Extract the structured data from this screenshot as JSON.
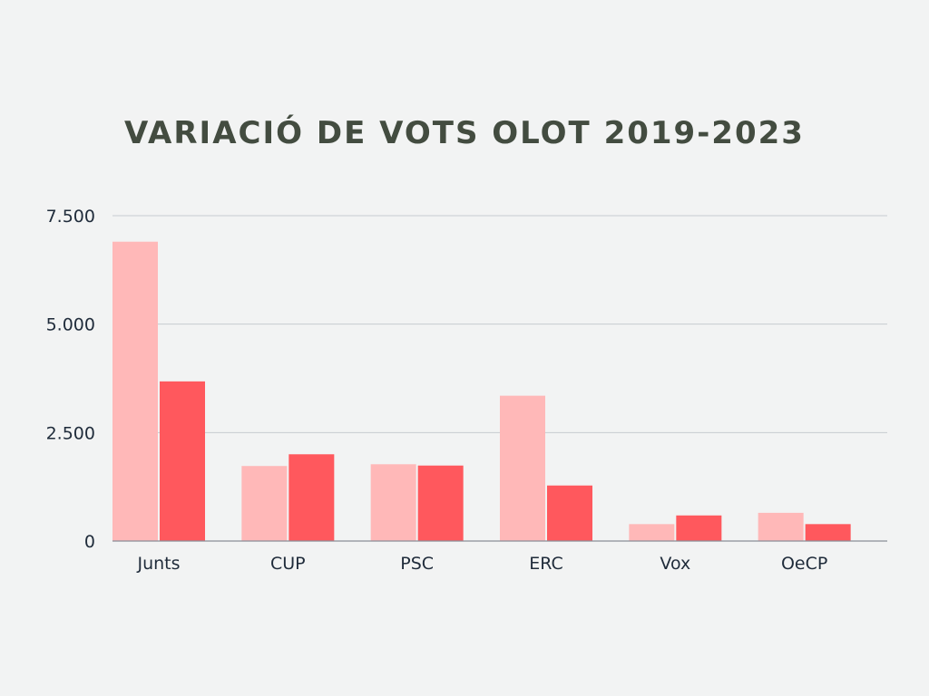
{
  "chart_data": {
    "type": "bar",
    "title": "VARIACIÓ DE VOTS OLOT 2019-2023",
    "xlabel": "",
    "ylabel": "",
    "categories": [
      "Junts",
      "CUP",
      "PSC",
      "ERC",
      "Vox",
      "OeCP"
    ],
    "series": [
      {
        "values": [
          6900,
          1730,
          1770,
          3350,
          390,
          650
        ]
      },
      {
        "values": [
          3680,
          2000,
          1740,
          1280,
          590,
          390
        ]
      }
    ],
    "ylim": [
      0,
      7500
    ],
    "yticks": [
      0,
      2500,
      5000,
      7500
    ],
    "ytick_labels": [
      "0",
      "2.500",
      "5.000",
      "7.500"
    ],
    "grid": true,
    "legend": "none",
    "colors": [
      "#ffb8b8",
      "#ff585d"
    ],
    "grid_color": "#c7cbd0",
    "axis_color": "#8a8f97"
  }
}
